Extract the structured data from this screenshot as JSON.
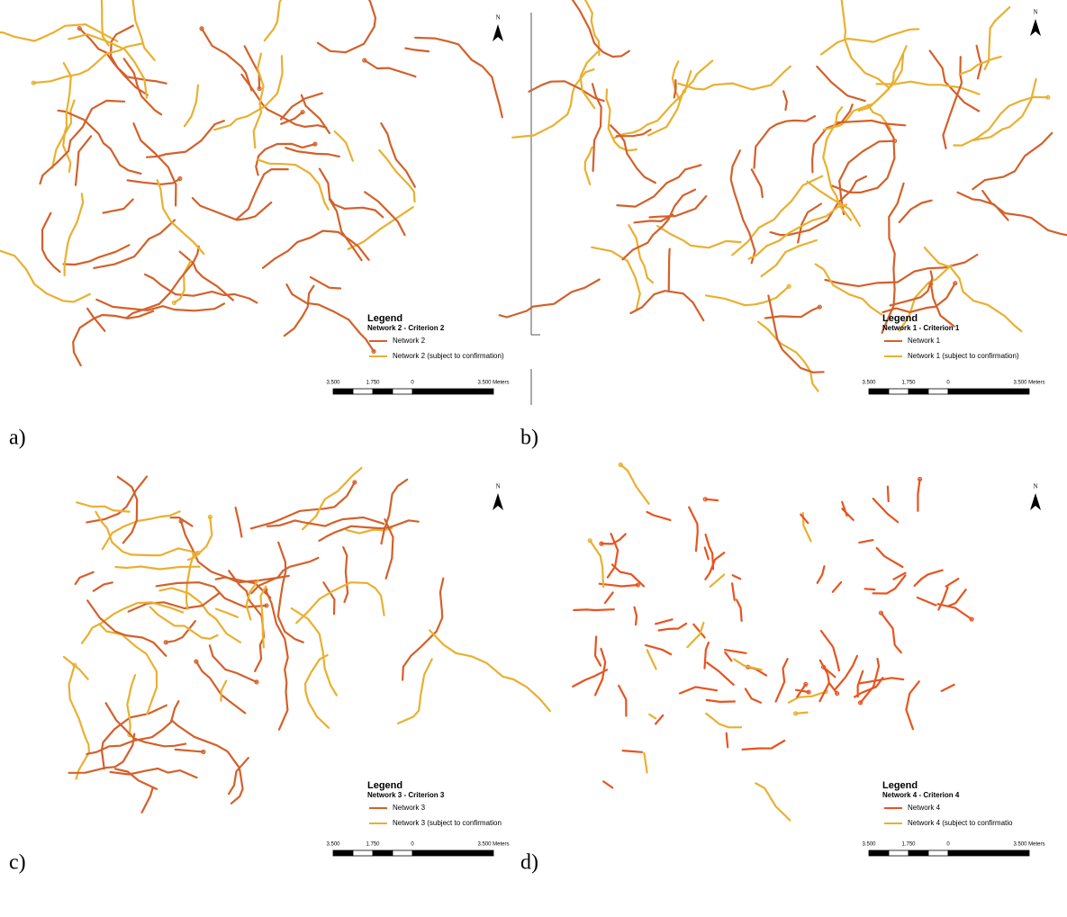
{
  "panels": [
    {
      "label": "a)",
      "north": "N",
      "legend": {
        "title": "Legend",
        "subtitle": "Network 2  -  Criterion 2",
        "items": [
          "Network 2",
          "Network  2 (subject to confirmation)"
        ],
        "item_colors": [
          "#d4602a",
          "#e9b030"
        ]
      },
      "scale": [
        "3.500",
        "1.750",
        "0",
        "3.500 Meters"
      ]
    },
    {
      "label": "b)",
      "north": "N",
      "legend": {
        "title": "Legend",
        "subtitle": "Network 1  -  Criterion 1",
        "items": [
          "Network 1",
          "Network 1  (subject to confirmation)"
        ],
        "item_colors": [
          "#d4602a",
          "#e9b030"
        ]
      },
      "scale": [
        "3.500",
        "1.750",
        "0",
        "3.500 Meters"
      ]
    },
    {
      "label": "c)",
      "north": "N",
      "legend": {
        "title": "Legend",
        "subtitle": "Network 3  -  Criterion 3",
        "items": [
          "Network 3",
          "Network 3 (subject to confirmation"
        ],
        "item_colors": [
          "#d4602a",
          "#e9b030"
        ]
      },
      "scale": [
        "3.500",
        "1.750",
        "0",
        "3.500 Meters"
      ]
    },
    {
      "label": "d)",
      "north": "N",
      "legend": {
        "title": "Legend",
        "subtitle": "Network 4  -  Criterion 4",
        "items": [
          "Network 4",
          "Network 4 (subject to confirmatio"
        ],
        "item_colors": [
          "#e8531f",
          "#e9b030"
        ]
      },
      "scale": [
        "3.500",
        "1.750",
        "0",
        "3.500 Meters"
      ]
    }
  ]
}
